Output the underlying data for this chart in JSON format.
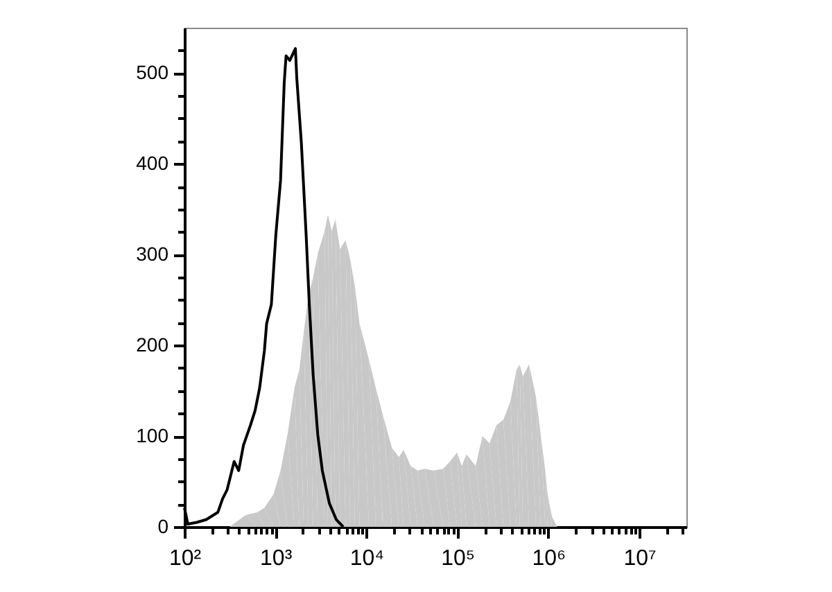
{
  "chart_data": {
    "type": "line",
    "log": "x",
    "xlim": [
      100,
      33000000
    ],
    "xticks": [
      {
        "value": 100,
        "label": "10²"
      },
      {
        "value": 200,
        "label": null
      },
      {
        "value": 300,
        "label": null
      },
      {
        "value": 400,
        "label": null
      },
      {
        "value": 500,
        "label": null
      },
      {
        "value": 600,
        "label": null
      },
      {
        "value": 700,
        "label": null
      },
      {
        "value": 800,
        "label": null
      },
      {
        "value": 900,
        "label": null
      },
      {
        "value": 1000,
        "label": "10³"
      },
      {
        "value": 2000,
        "label": null
      },
      {
        "value": 3000,
        "label": null
      },
      {
        "value": 4000,
        "label": null
      },
      {
        "value": 5000,
        "label": null
      },
      {
        "value": 6000,
        "label": null
      },
      {
        "value": 7000,
        "label": null
      },
      {
        "value": 8000,
        "label": null
      },
      {
        "value": 9000,
        "label": null
      },
      {
        "value": 10000,
        "label": "10⁴"
      },
      {
        "value": 20000,
        "label": null
      },
      {
        "value": 30000,
        "label": null
      },
      {
        "value": 40000,
        "label": null
      },
      {
        "value": 50000,
        "label": null
      },
      {
        "value": 60000,
        "label": null
      },
      {
        "value": 70000,
        "label": null
      },
      {
        "value": 80000,
        "label": null
      },
      {
        "value": 90000,
        "label": null
      },
      {
        "value": 100000,
        "label": "10⁵"
      },
      {
        "value": 200000,
        "label": null
      },
      {
        "value": 300000,
        "label": null
      },
      {
        "value": 400000,
        "label": null
      },
      {
        "value": 500000,
        "label": null
      },
      {
        "value": 600000,
        "label": null
      },
      {
        "value": 700000,
        "label": null
      },
      {
        "value": 800000,
        "label": null
      },
      {
        "value": 900000,
        "label": null
      },
      {
        "value": 1000000,
        "label": "10⁶"
      },
      {
        "value": 2000000,
        "label": null
      },
      {
        "value": 3000000,
        "label": null
      },
      {
        "value": 4000000,
        "label": null
      },
      {
        "value": 5000000,
        "label": null
      },
      {
        "value": 6000000,
        "label": null
      },
      {
        "value": 7000000,
        "label": null
      },
      {
        "value": 8000000,
        "label": null
      },
      {
        "value": 9000000,
        "label": null
      },
      {
        "value": 10000000,
        "label": "10⁷"
      },
      {
        "value": 20000000,
        "label": null
      },
      {
        "value": 30000000,
        "label": null
      }
    ],
    "ylim": [
      0,
      550
    ],
    "yticks": [
      0,
      {
        "value": 25,
        "label": null
      },
      {
        "value": 50,
        "label": null
      },
      {
        "value": 75,
        "label": null
      },
      100,
      {
        "value": 125,
        "label": null
      },
      {
        "value": 150,
        "label": null
      },
      {
        "value": 175,
        "label": null
      },
      200,
      {
        "value": 225,
        "label": null
      },
      {
        "value": 250,
        "label": null
      },
      {
        "value": 275,
        "label": null
      },
      300,
      {
        "value": 325,
        "label": null
      },
      {
        "value": 350,
        "label": null
      },
      {
        "value": 375,
        "label": null
      },
      400,
      {
        "value": 425,
        "label": null
      },
      {
        "value": 450,
        "label": null
      },
      {
        "value": 475,
        "label": null
      },
      500,
      {
        "value": 525,
        "label": null
      }
    ],
    "series": [
      {
        "type": "area",
        "color": "#c8c8c8",
        "x": [
          313,
          472,
          634,
          757,
          955,
          1140,
          1360,
          1620,
          1830,
          2050,
          2310,
          2600,
          2920,
          3480,
          3780,
          4160,
          4570,
          5130,
          5910,
          6640,
          7480,
          8410,
          10700,
          12700,
          15200,
          19100,
          22800,
          25700,
          30700,
          36600,
          43700,
          55100,
          69800,
          83200,
          99300,
          112000,
          126000,
          159000,
          189000,
          226000,
          269000,
          321000,
          383000,
          448000,
          485000,
          526000,
          615000,
          733000,
          824000,
          926000,
          982000,
          1100000,
          1250000
        ],
        "values": [
          0,
          13,
          16,
          21,
          36,
          62,
          102,
          153,
          173,
          214,
          255,
          275,
          301,
          326,
          344,
          326,
          339,
          306,
          316,
          295,
          265,
          224,
          184,
          153,
          123,
          87,
          77,
          85,
          67,
          62,
          64,
          62,
          64,
          72,
          82,
          67,
          80,
          67,
          100,
          92,
          112,
          118,
          138,
          173,
          179,
          166,
          179,
          143,
          102,
          62,
          36,
          11,
          0
        ]
      },
      {
        "color": "#000000",
        "x": [
          100,
          109,
          137,
          174,
          233,
          263,
          295,
          352,
          395,
          446,
          532,
          598,
          671,
          757,
          801,
          903,
          1010,
          1140,
          1250,
          1310,
          1440,
          1660,
          1720,
          1930,
          2180,
          2360,
          2600,
          2920,
          3280,
          3920,
          4670,
          5570
        ],
        "values": [
          21,
          3,
          5,
          8,
          16,
          31,
          41,
          72,
          62,
          90,
          112,
          128,
          153,
          194,
          224,
          245,
          321,
          382,
          489,
          519,
          514,
          527,
          494,
          423,
          321,
          245,
          168,
          102,
          62,
          26,
          8,
          0
        ]
      }
    ]
  }
}
